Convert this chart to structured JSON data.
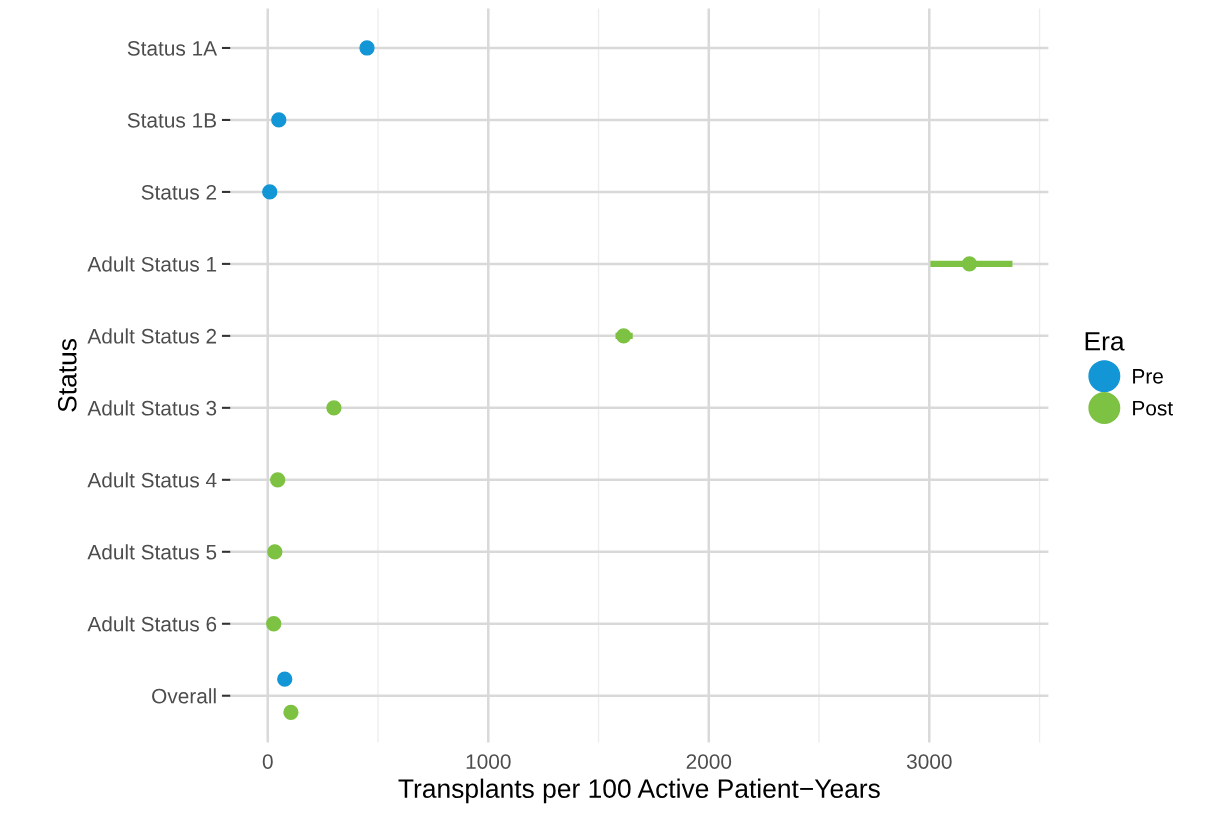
{
  "chart_data": {
    "type": "scatter",
    "orientation": "horizontal",
    "xlabel": "Transplants per 100 Active Patient−Years",
    "ylabel": "Status",
    "legend_title": "Era",
    "legend": "right",
    "grid": true,
    "marker": "circle",
    "categories": [
      "Status 1A",
      "Status 1B",
      "Status 2",
      "Adult Status 1",
      "Adult Status 2",
      "Adult Status 3",
      "Adult Status 4",
      "Adult Status 5",
      "Adult Status 6",
      "Overall"
    ],
    "xlim": [
      -170,
      3540
    ],
    "xticks": [
      0,
      {
        "value": 500,
        "label": null
      },
      1000,
      {
        "value": 1500,
        "label": null
      },
      2000,
      {
        "value": 2500,
        "label": null
      },
      3000,
      {
        "value": 3500,
        "label": null
      }
    ],
    "series": [
      {
        "name": "Pre",
        "color": "#1396d6",
        "values": [
          450,
          50,
          9,
          null,
          null,
          null,
          null,
          null,
          null,
          77
        ]
      },
      {
        "name": "Post",
        "color": "#7dc242",
        "values": [
          null,
          null,
          null,
          3182,
          1614,
          300,
          45,
          32,
          27,
          105
        ],
        "errors": [
          null,
          null,
          null,
          [
            3005,
            3377
          ],
          [
            1577,
            1655
          ],
          null,
          null,
          null,
          null,
          null
        ]
      }
    ]
  }
}
